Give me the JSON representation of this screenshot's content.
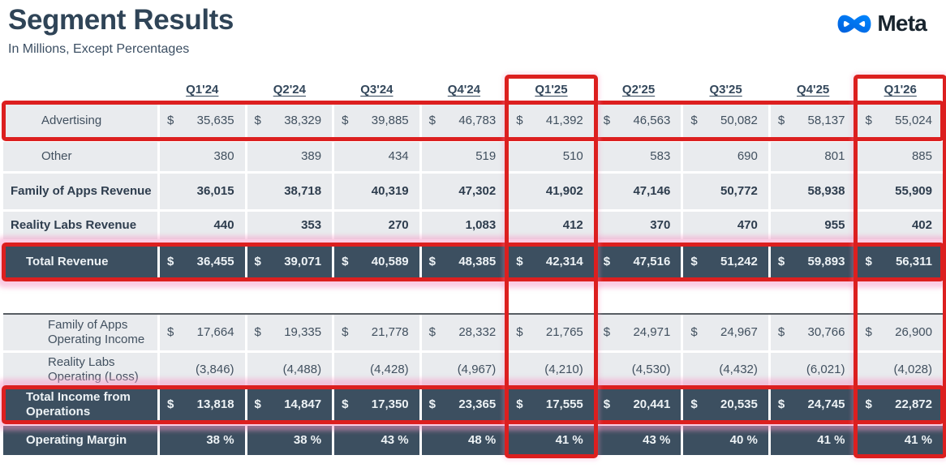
{
  "header": {
    "title": "Segment Results",
    "subtitle": "In Millions, Except Percentages",
    "logo": {
      "text": "Meta",
      "icon": "meta-infinity-icon",
      "gradient": [
        "#0082FB",
        "#0064E0"
      ],
      "text_color": "#18242e"
    }
  },
  "table": {
    "dollar_sign": "$",
    "quarters": [
      "Q1'24",
      "Q2'24",
      "Q3'24",
      "Q4'24",
      "Q1'25",
      "Q2'25",
      "Q3'25",
      "Q4'25",
      "Q1'26"
    ],
    "rows": [
      {
        "name": "advertising",
        "label": "Advertising",
        "dollar": true,
        "values": [
          "35,635",
          "38,329",
          "39,885",
          "46,783",
          "41,392",
          "46,563",
          "50,082",
          "58,137",
          "55,024"
        ]
      },
      {
        "name": "other",
        "label": "Other",
        "dollar": false,
        "values": [
          "380",
          "389",
          "434",
          "519",
          "510",
          "583",
          "690",
          "801",
          "885"
        ]
      },
      {
        "name": "foa-revenue",
        "label": "Family of Apps Revenue",
        "dollar": false,
        "values": [
          "36,015",
          "38,718",
          "40,319",
          "47,302",
          "41,902",
          "47,146",
          "50,772",
          "58,938",
          "55,909"
        ]
      },
      {
        "name": "rl-revenue",
        "label": "Reality Labs Revenue",
        "dollar": false,
        "values": [
          "440",
          "353",
          "270",
          "1,083",
          "412",
          "370",
          "470",
          "955",
          "402"
        ]
      },
      {
        "name": "total-revenue",
        "label": "Total Revenue",
        "dollar": true,
        "values": [
          "36,455",
          "39,071",
          "40,589",
          "48,385",
          "42,314",
          "47,516",
          "51,242",
          "59,893",
          "56,311"
        ]
      },
      {
        "name": "foa-op-income",
        "label": "Family of Apps Operating Income",
        "dollar": true,
        "values": [
          "17,664",
          "19,335",
          "21,778",
          "28,332",
          "21,765",
          "24,971",
          "24,967",
          "30,766",
          "26,900"
        ]
      },
      {
        "name": "rl-op-loss",
        "label": "Reality Labs Operating (Loss)",
        "dollar": false,
        "values": [
          "(3,846)",
          "(4,488)",
          "(4,428)",
          "(4,967)",
          "(4,210)",
          "(4,530)",
          "(4,432)",
          "(6,021)",
          "(4,028)"
        ]
      },
      {
        "name": "total-income",
        "label": "Total Income from Operations",
        "dollar": true,
        "values": [
          "13,818",
          "14,847",
          "17,350",
          "23,365",
          "17,555",
          "20,441",
          "20,535",
          "24,745",
          "22,872"
        ]
      },
      {
        "name": "op-margin",
        "label": "Operating Margin",
        "dollar": false,
        "values": [
          "38 %",
          "38 %",
          "43 %",
          "48 %",
          "41 %",
          "43 %",
          "40 %",
          "41 %",
          "41 %"
        ]
      }
    ]
  },
  "annotations": {
    "box_color": "#dc1f1f",
    "glow_color_strong": "rgba(248,153,200,0.5)",
    "glow_color_faint": "rgba(248,153,200,0.25)",
    "boxes": [
      {
        "name": "advertising-row-highlight",
        "type": "row",
        "target": "advertising",
        "glow": "none"
      },
      {
        "name": "total-revenue-row-highlight",
        "type": "row",
        "target": "total-revenue",
        "glow": "strong"
      },
      {
        "name": "total-income-row-highlight",
        "type": "row",
        "target": "total-income",
        "glow": "strong"
      },
      {
        "name": "q1-25-column-highlight",
        "type": "column",
        "quarter_index": 4,
        "glow": "faint"
      },
      {
        "name": "q1-26-column-highlight",
        "type": "column",
        "quarter_index": 8,
        "glow": "faint"
      }
    ]
  }
}
